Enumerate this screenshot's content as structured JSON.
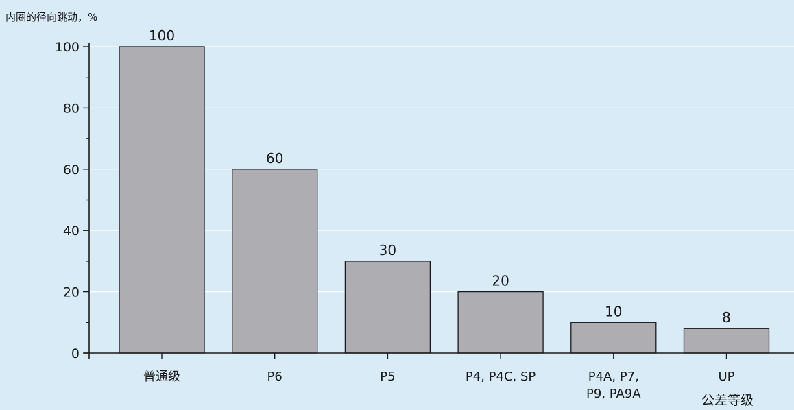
{
  "chart_data": {
    "type": "bar",
    "ylabel": "内圈的径向跳动，%",
    "xlabel": "公差等级",
    "categories": [
      [
        "普通级"
      ],
      [
        "P6"
      ],
      [
        "P5"
      ],
      [
        "P4, P4C, SP"
      ],
      [
        "P4A, P7,",
        "P9, PA9A"
      ],
      [
        "UP"
      ]
    ],
    "values": [
      100,
      60,
      30,
      20,
      10,
      8
    ],
    "ylim": [
      0,
      100
    ],
    "yticks": [
      0,
      20,
      40,
      60,
      80,
      100
    ],
    "grid": true,
    "bar_color": "#aeadb2",
    "bar_stroke": "#1a1a1a",
    "grid_color": "#ffffff",
    "background": "#d9ebf7"
  }
}
